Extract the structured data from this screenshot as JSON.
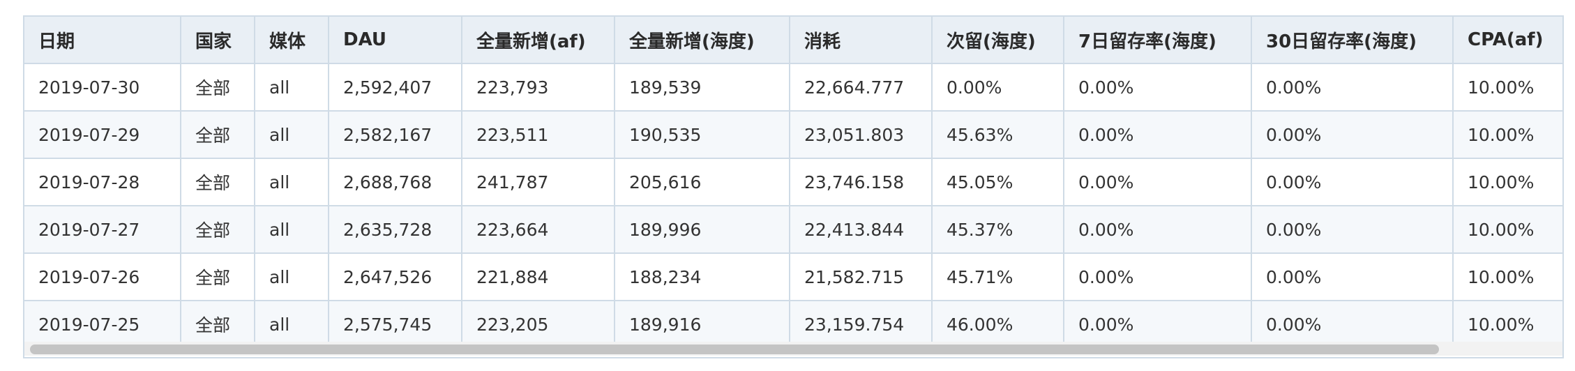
{
  "table": {
    "headers": [
      "日期",
      "国家",
      "媒体",
      "DAU",
      "全量新增(af)",
      "全量新增(海度)",
      "消耗",
      "次留(海度)",
      "7日留存率(海度)",
      "30日留存率(海度)",
      "CPA(af)"
    ],
    "rows": [
      [
        "2019-07-30",
        "全部",
        "all",
        "2,592,407",
        "223,793",
        "189,539",
        "22,664.777",
        "0.00%",
        "0.00%",
        "0.00%",
        "10.00%"
      ],
      [
        "2019-07-29",
        "全部",
        "all",
        "2,582,167",
        "223,511",
        "190,535",
        "23,051.803",
        "45.63%",
        "0.00%",
        "0.00%",
        "10.00%"
      ],
      [
        "2019-07-28",
        "全部",
        "all",
        "2,688,768",
        "241,787",
        "205,616",
        "23,746.158",
        "45.05%",
        "0.00%",
        "0.00%",
        "10.00%"
      ],
      [
        "2019-07-27",
        "全部",
        "all",
        "2,635,728",
        "223,664",
        "189,996",
        "22,413.844",
        "45.37%",
        "0.00%",
        "0.00%",
        "10.00%"
      ],
      [
        "2019-07-26",
        "全部",
        "all",
        "2,647,526",
        "221,884",
        "188,234",
        "21,582.715",
        "45.71%",
        "0.00%",
        "0.00%",
        "10.00%"
      ],
      [
        "2019-07-25",
        "全部",
        "all",
        "2,575,745",
        "223,205",
        "189,916",
        "23,159.754",
        "46.00%",
        "0.00%",
        "0.00%",
        "10.00%"
      ]
    ]
  },
  "scrollbar": {
    "orientation": "horizontal"
  },
  "colors": {
    "header_bg": "#e9eff5",
    "border": "#cfdbe6",
    "row_alt_bg": "#f5f8fb",
    "scroll_thumb": "#c4c4c4"
  }
}
